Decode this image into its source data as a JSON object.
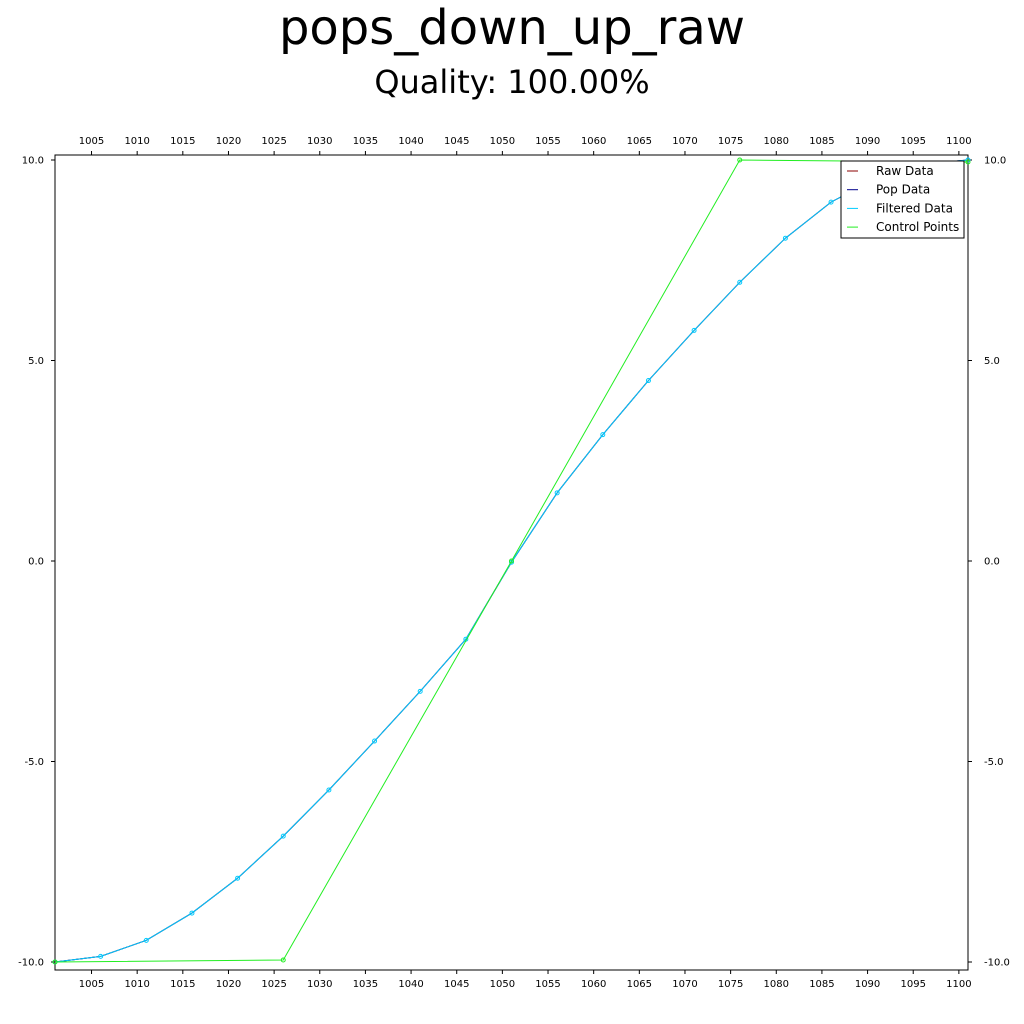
{
  "chart_data": {
    "type": "line",
    "title": "pops_down_up_raw",
    "subtitle": "Quality: 100.00%",
    "xlabel": "",
    "ylabel": "",
    "xlim": [
      1001,
      1101
    ],
    "ylim": [
      -10,
      10
    ],
    "x_ticks": [
      1005,
      1010,
      1015,
      1020,
      1025,
      1030,
      1035,
      1040,
      1045,
      1050,
      1055,
      1060,
      1065,
      1070,
      1075,
      1080,
      1085,
      1090,
      1095,
      1100
    ],
    "y_ticks": [
      -10.0,
      -5.0,
      0.0,
      5.0,
      10.0
    ],
    "y_tick_labels": [
      "-10.0",
      "-5.0",
      "0.0",
      "5.0",
      "10.0"
    ],
    "grid": false,
    "legend_position": "top-right",
    "series": [
      {
        "name": "Raw Data",
        "color": "#8b0000",
        "x": [
          1001,
          1006,
          1011,
          1016,
          1021,
          1026,
          1031,
          1036,
          1041,
          1046,
          1051,
          1056,
          1061,
          1066,
          1071,
          1076,
          1081,
          1086,
          1091,
          1096,
          1101
        ],
        "y": [
          -10.0,
          -9.86,
          -9.46,
          -8.78,
          -7.91,
          -6.86,
          -5.71,
          -4.49,
          -3.25,
          -1.95,
          -0.03,
          1.7,
          3.15,
          4.5,
          5.75,
          6.95,
          8.05,
          8.95,
          9.55,
          9.9,
          10.0
        ]
      },
      {
        "name": "Pop Data",
        "color": "#00008b",
        "x": [
          1001,
          1006,
          1011,
          1016,
          1021,
          1026,
          1031,
          1036,
          1041,
          1046,
          1051,
          1056,
          1061,
          1066,
          1071,
          1076,
          1081,
          1086,
          1091,
          1096,
          1101
        ],
        "y": [
          -10.0,
          -9.86,
          -9.46,
          -8.78,
          -7.91,
          -6.86,
          -5.71,
          -4.49,
          -3.25,
          -1.95,
          -0.03,
          1.7,
          3.15,
          4.5,
          5.75,
          6.95,
          8.05,
          8.95,
          9.55,
          9.9,
          10.0
        ]
      },
      {
        "name": "Filtered Data",
        "color": "#00ccff",
        "marker": "circle",
        "x": [
          1001,
          1006,
          1011,
          1016,
          1021,
          1026,
          1031,
          1036,
          1041,
          1046,
          1051,
          1056,
          1061,
          1066,
          1071,
          1076,
          1081,
          1086,
          1091,
          1096,
          1101
        ],
        "y": [
          -10.0,
          -9.86,
          -9.46,
          -8.78,
          -7.91,
          -6.86,
          -5.71,
          -4.49,
          -3.25,
          -1.95,
          -0.03,
          1.7,
          3.15,
          4.5,
          5.75,
          6.95,
          8.05,
          8.95,
          9.55,
          9.9,
          10.0
        ]
      },
      {
        "name": "Control Points",
        "color": "#22ee22",
        "marker": "circle",
        "x": [
          1001,
          1026,
          1051,
          1076,
          1101
        ],
        "y": [
          -10.0,
          -9.95,
          0.0,
          10.0,
          9.95
        ]
      }
    ]
  }
}
